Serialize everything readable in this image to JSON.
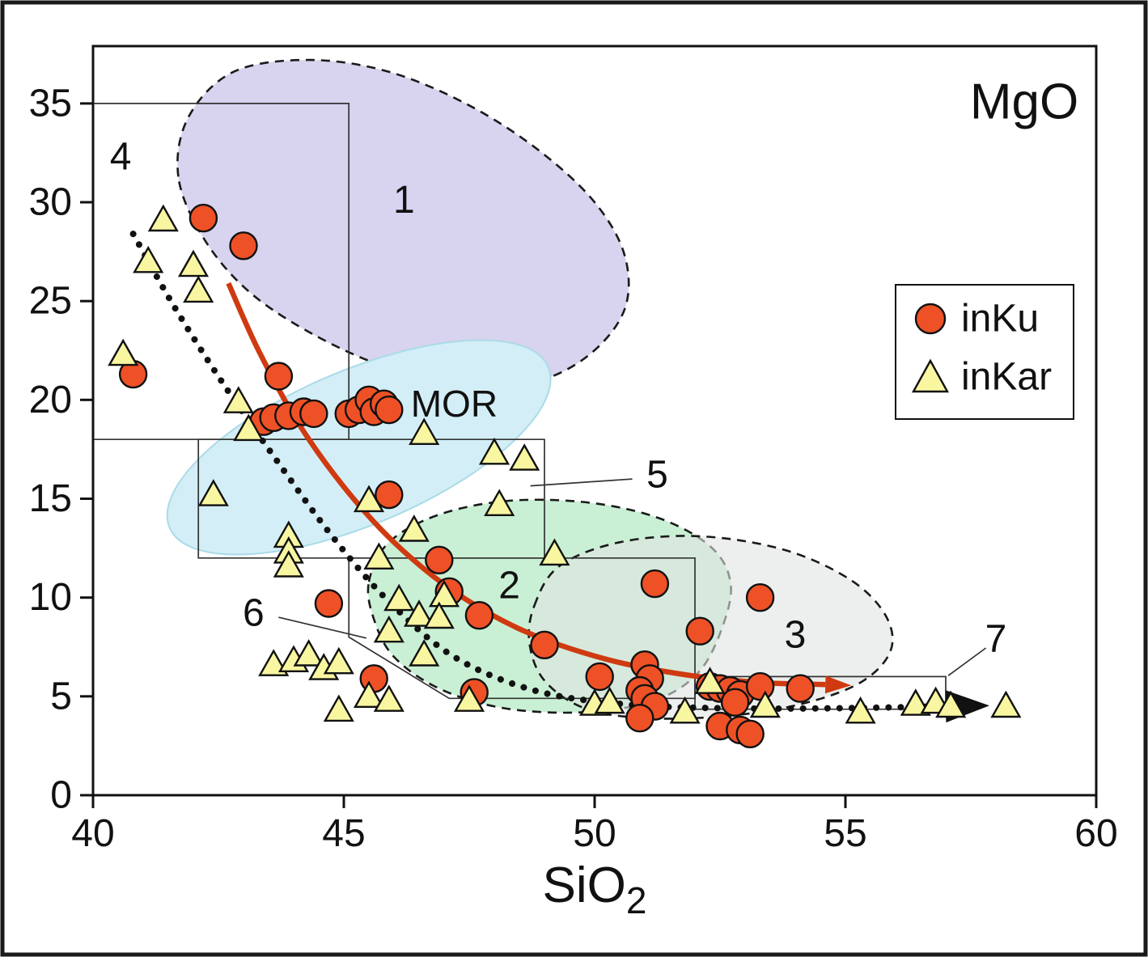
{
  "title": "MgO",
  "chart_data": {
    "type": "scatter",
    "xlabel": {
      "base": "SiO",
      "sub": "2"
    },
    "ylabel": "MgO",
    "xlim": [
      40,
      60
    ],
    "ylim": [
      0,
      37.9
    ],
    "xticks": [
      40,
      45,
      50,
      55,
      60
    ],
    "yticks": [
      0,
      5,
      10,
      15,
      20,
      25,
      30,
      35
    ],
    "grid": false,
    "legend_position": "upper right",
    "series": [
      {
        "name": "inKu",
        "marker": "circle",
        "fill": "#ee5126",
        "stroke": "#111111",
        "points": [
          [
            40.8,
            21.3
          ],
          [
            42.2,
            29.2
          ],
          [
            43.0,
            27.8
          ],
          [
            43.7,
            21.2
          ],
          [
            43.4,
            18.9
          ],
          [
            43.6,
            19.1
          ],
          [
            43.9,
            19.2
          ],
          [
            44.2,
            19.4
          ],
          [
            44.4,
            19.3
          ],
          [
            45.1,
            19.3
          ],
          [
            45.3,
            19.5
          ],
          [
            45.5,
            20.0
          ],
          [
            45.6,
            19.4
          ],
          [
            45.8,
            19.8
          ],
          [
            45.9,
            19.5
          ],
          [
            45.9,
            15.2
          ],
          [
            44.7,
            9.7
          ],
          [
            46.9,
            11.9
          ],
          [
            47.1,
            10.3
          ],
          [
            47.7,
            9.1
          ],
          [
            49.0,
            7.6
          ],
          [
            51.2,
            10.7
          ],
          [
            52.1,
            8.3
          ],
          [
            53.3,
            10.0
          ],
          [
            50.1,
            6.0
          ],
          [
            51.0,
            6.6
          ],
          [
            51.1,
            5.9
          ],
          [
            50.9,
            5.3
          ],
          [
            51.0,
            4.9
          ],
          [
            51.2,
            4.5
          ],
          [
            50.9,
            3.9
          ],
          [
            52.3,
            5.5
          ],
          [
            52.5,
            5.4
          ],
          [
            52.7,
            5.3
          ],
          [
            52.9,
            5.1
          ],
          [
            52.8,
            4.7
          ],
          [
            52.5,
            3.5
          ],
          [
            52.9,
            3.3
          ],
          [
            53.1,
            3.1
          ],
          [
            53.3,
            5.5
          ],
          [
            54.1,
            5.4
          ],
          [
            45.6,
            5.9
          ],
          [
            47.6,
            5.2
          ]
        ]
      },
      {
        "name": "inKar",
        "marker": "triangle",
        "fill": "#f8f6a0",
        "stroke": "#111111",
        "points": [
          [
            41.4,
            29.0
          ],
          [
            41.1,
            26.9
          ],
          [
            42.0,
            26.7
          ],
          [
            42.1,
            25.4
          ],
          [
            40.6,
            22.2
          ],
          [
            42.9,
            19.8
          ],
          [
            43.1,
            18.4
          ],
          [
            46.6,
            18.2
          ],
          [
            48.0,
            17.2
          ],
          [
            48.6,
            16.9
          ],
          [
            42.4,
            15.1
          ],
          [
            45.5,
            14.8
          ],
          [
            48.1,
            14.6
          ],
          [
            43.9,
            13.0
          ],
          [
            46.4,
            13.3
          ],
          [
            43.9,
            12.2
          ],
          [
            43.9,
            11.5
          ],
          [
            45.7,
            11.9
          ],
          [
            49.2,
            12.1
          ],
          [
            46.1,
            9.8
          ],
          [
            47.0,
            10.0
          ],
          [
            46.5,
            9.0
          ],
          [
            46.9,
            8.9
          ],
          [
            45.9,
            8.2
          ],
          [
            46.6,
            7.0
          ],
          [
            43.6,
            6.5
          ],
          [
            44.0,
            6.7
          ],
          [
            44.3,
            7.0
          ],
          [
            44.6,
            6.3
          ],
          [
            44.9,
            6.6
          ],
          [
            44.9,
            4.2
          ],
          [
            45.5,
            4.9
          ],
          [
            45.9,
            4.7
          ],
          [
            47.5,
            4.7
          ],
          [
            50.0,
            4.5
          ],
          [
            50.3,
            4.6
          ],
          [
            51.8,
            4.1
          ],
          [
            52.3,
            5.6
          ],
          [
            53.4,
            4.4
          ],
          [
            55.3,
            4.1
          ],
          [
            56.4,
            4.5
          ],
          [
            56.8,
            4.6
          ],
          [
            57.1,
            4.4
          ],
          [
            58.2,
            4.4
          ]
        ]
      }
    ],
    "fields": [
      {
        "label": "1",
        "kind": "blob",
        "fill": "#d8d3ee",
        "outline": true,
        "label_pos": [
          46.2,
          30.1
        ],
        "points": [
          [
            41.7,
            31.3
          ],
          [
            41.9,
            34.3
          ],
          [
            42.8,
            36.6
          ],
          [
            44.3,
            37.2
          ],
          [
            45.9,
            36.6
          ],
          [
            47.5,
            34.9
          ],
          [
            48.9,
            32.6
          ],
          [
            50.0,
            30.0
          ],
          [
            50.6,
            27.3
          ],
          [
            50.6,
            24.6
          ],
          [
            49.9,
            22.3
          ],
          [
            48.8,
            20.9
          ],
          [
            47.4,
            20.7
          ],
          [
            45.9,
            21.6
          ],
          [
            44.4,
            23.3
          ],
          [
            43.1,
            25.5
          ],
          [
            42.2,
            28.2
          ]
        ]
      },
      {
        "label": "MOR",
        "kind": "ellipse",
        "fill": "#d3eef6",
        "edge": "#aadbe8",
        "label_pos": [
          47.2,
          19.8
        ],
        "center": [
          45.3,
          17.6
        ],
        "rx": 4.1,
        "ry": 3.9,
        "rotate": -23
      },
      {
        "label": "2",
        "kind": "blob",
        "fill": "#c9f0d4",
        "outline": true,
        "label_pos": [
          48.3,
          10.6
        ],
        "points": [
          [
            45.5,
            10.8
          ],
          [
            45.9,
            12.8
          ],
          [
            46.9,
            14.2
          ],
          [
            48.3,
            14.9
          ],
          [
            49.9,
            14.8
          ],
          [
            51.3,
            14.0
          ],
          [
            52.3,
            12.6
          ],
          [
            52.7,
            10.9
          ],
          [
            52.6,
            8.9
          ],
          [
            52.1,
            6.3
          ],
          [
            51.2,
            4.8
          ],
          [
            49.8,
            4.2
          ],
          [
            48.2,
            4.4
          ],
          [
            46.9,
            5.4
          ],
          [
            46.0,
            7.0
          ],
          [
            45.6,
            8.9
          ]
        ]
      },
      {
        "label": "3",
        "kind": "blob",
        "fill": "#dfe5e1",
        "fill_opacity": 0.6,
        "outline": true,
        "label_pos": [
          54.0,
          8.1
        ],
        "points": [
          [
            48.8,
            9.6
          ],
          [
            49.3,
            11.6
          ],
          [
            50.5,
            12.8
          ],
          [
            52.1,
            13.1
          ],
          [
            53.8,
            12.4
          ],
          [
            55.1,
            10.9
          ],
          [
            55.8,
            9.1
          ],
          [
            55.9,
            7.3
          ],
          [
            55.3,
            5.7
          ],
          [
            54.1,
            4.6
          ],
          [
            52.6,
            4.0
          ],
          [
            51.0,
            3.9
          ],
          [
            49.8,
            4.4
          ],
          [
            49.0,
            5.8
          ],
          [
            48.7,
            7.7
          ]
        ]
      }
    ],
    "boxes": [
      {
        "label": "4",
        "label_pos": [
          40.55,
          32.3
        ],
        "closed": false,
        "points": [
          [
            40,
            35
          ],
          [
            45.1,
            35
          ],
          [
            45.1,
            18
          ],
          [
            40,
            18
          ]
        ]
      },
      {
        "label": "5",
        "label_pos": [
          51.25,
          16.2
        ],
        "closed": true,
        "points": [
          [
            42.1,
            18
          ],
          [
            49,
            18
          ],
          [
            49,
            12
          ],
          [
            42.1,
            12
          ]
        ],
        "leader": [
          [
            50.75,
            16.0
          ],
          [
            48.72,
            15.65
          ]
        ]
      },
      {
        "label": "6",
        "label_pos": [
          43.2,
          9.2
        ],
        "closed": true,
        "points": [
          [
            45.1,
            12
          ],
          [
            52,
            12
          ],
          [
            52,
            4.9
          ],
          [
            47.1,
            4.9
          ],
          [
            45.1,
            8.0
          ]
        ],
        "leader": [
          [
            43.7,
            9.0
          ],
          [
            45.45,
            7.95
          ]
        ]
      },
      {
        "label": "7",
        "label_pos": [
          58.0,
          7.9
        ],
        "closed": true,
        "points": [
          [
            52,
            6.0
          ],
          [
            57,
            6.0
          ],
          [
            57,
            4.35
          ],
          [
            52,
            4.35
          ]
        ],
        "leader": [
          [
            57.8,
            7.45
          ],
          [
            57.05,
            6.05
          ]
        ]
      }
    ],
    "trends": [
      {
        "name": "inKu-trend",
        "style": "solid",
        "color": "#cf3a10",
        "width": 6.5,
        "points": [
          [
            42.7,
            25.9
          ],
          [
            43.3,
            22.5
          ],
          [
            44.1,
            18.8
          ],
          [
            45.0,
            15.6
          ],
          [
            46.0,
            12.8
          ],
          [
            47.2,
            10.3
          ],
          [
            48.6,
            8.3
          ],
          [
            50.2,
            6.9
          ],
          [
            51.8,
            6.1
          ],
          [
            53.3,
            5.7
          ],
          [
            54.6,
            5.6
          ]
        ],
        "arrow": {
          "length": 32,
          "halfwidth": 11
        }
      },
      {
        "name": "inKar-trend",
        "style": "dotted",
        "color": "#111111",
        "width": 8,
        "points": [
          [
            40.8,
            28.4
          ],
          [
            41.6,
            24.8
          ],
          [
            42.6,
            20.8
          ],
          [
            43.7,
            16.8
          ],
          [
            44.8,
            13.0
          ],
          [
            45.9,
            9.8
          ],
          [
            47.2,
            7.0
          ],
          [
            48.8,
            5.3
          ],
          [
            50.6,
            4.6
          ],
          [
            52.6,
            4.4
          ],
          [
            54.8,
            4.4
          ],
          [
            57.0,
            4.5
          ]
        ],
        "arrow": {
          "length": 54,
          "halfwidth": 20
        }
      }
    ],
    "legend": {
      "items": [
        "inKu",
        "inKar"
      ]
    }
  }
}
